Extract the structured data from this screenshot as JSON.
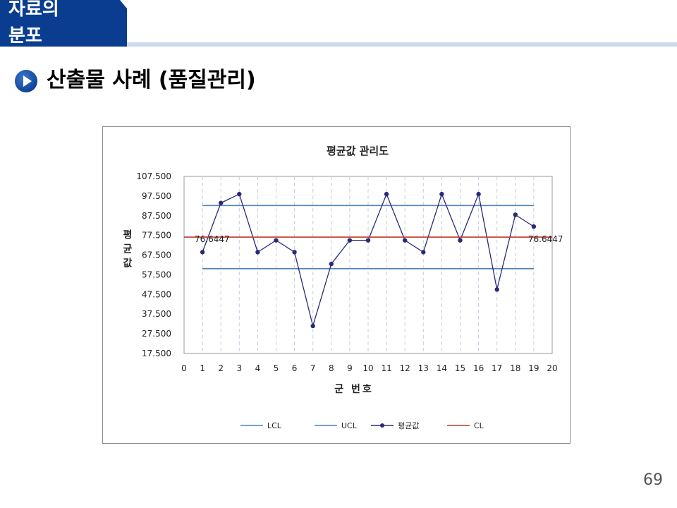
{
  "header": {
    "section_label": "자료의 분포"
  },
  "slide": {
    "title": "산출물 사례 (품질관리)",
    "page_number": "69"
  },
  "colors": {
    "header_blue": "#0a3d8f",
    "header_line": "#cdd9ec",
    "series_mean": "#2a2a78",
    "limit_lines": "#4f81bd",
    "center_line": "#c0392b"
  },
  "icons": {
    "title_bullet": "play-circle-icon"
  },
  "chart_data": {
    "type": "line",
    "title": "평균값 관리도",
    "xlabel": "군 번호",
    "ylabel": "평균값",
    "x_ticks": [
      "0",
      "1",
      "2",
      "3",
      "4",
      "5",
      "6",
      "7",
      "8",
      "9",
      "10",
      "11",
      "12",
      "13",
      "14",
      "15",
      "16",
      "17",
      "18",
      "19",
      "20"
    ],
    "y_ticks": [
      "107.500",
      "97.500",
      "87.500",
      "77.500",
      "67.500",
      "57.500",
      "47.500",
      "37.500",
      "27.500",
      "17.500"
    ],
    "xlim": [
      0,
      20
    ],
    "ylim": [
      17.5,
      107.5
    ],
    "grid": {
      "vertical": true,
      "vertical_style": "dashed",
      "horizontal": false
    },
    "legend_position": "bottom",
    "series": [
      {
        "name": "LCL",
        "style": "line",
        "color": "#4f81bd",
        "x": [
          1,
          19
        ],
        "values": [
          60.6,
          60.6
        ]
      },
      {
        "name": "UCL",
        "style": "line",
        "color": "#4f81bd",
        "x": [
          1,
          19
        ],
        "values": [
          92.7,
          92.7
        ]
      },
      {
        "name": "평균값",
        "style": "line-marker",
        "color": "#2a2a78",
        "x": [
          1,
          2,
          3,
          4,
          5,
          6,
          7,
          8,
          9,
          10,
          11,
          12,
          13,
          14,
          15,
          16,
          17,
          18,
          19
        ],
        "values": [
          69,
          94,
          98.5,
          69,
          75,
          69,
          31.5,
          63,
          75,
          75,
          98.5,
          75,
          69,
          98.5,
          75,
          98.5,
          50,
          88,
          82
        ]
      },
      {
        "name": "CL",
        "style": "line",
        "color": "#c0392b",
        "x": [
          0,
          20
        ],
        "values": [
          76.6447,
          76.6447
        ]
      }
    ],
    "annotations": [
      {
        "text": "76.6447",
        "x": 0,
        "y": 76.6447
      },
      {
        "text": "76.6447",
        "x": 19,
        "y": 76.6447
      }
    ]
  }
}
